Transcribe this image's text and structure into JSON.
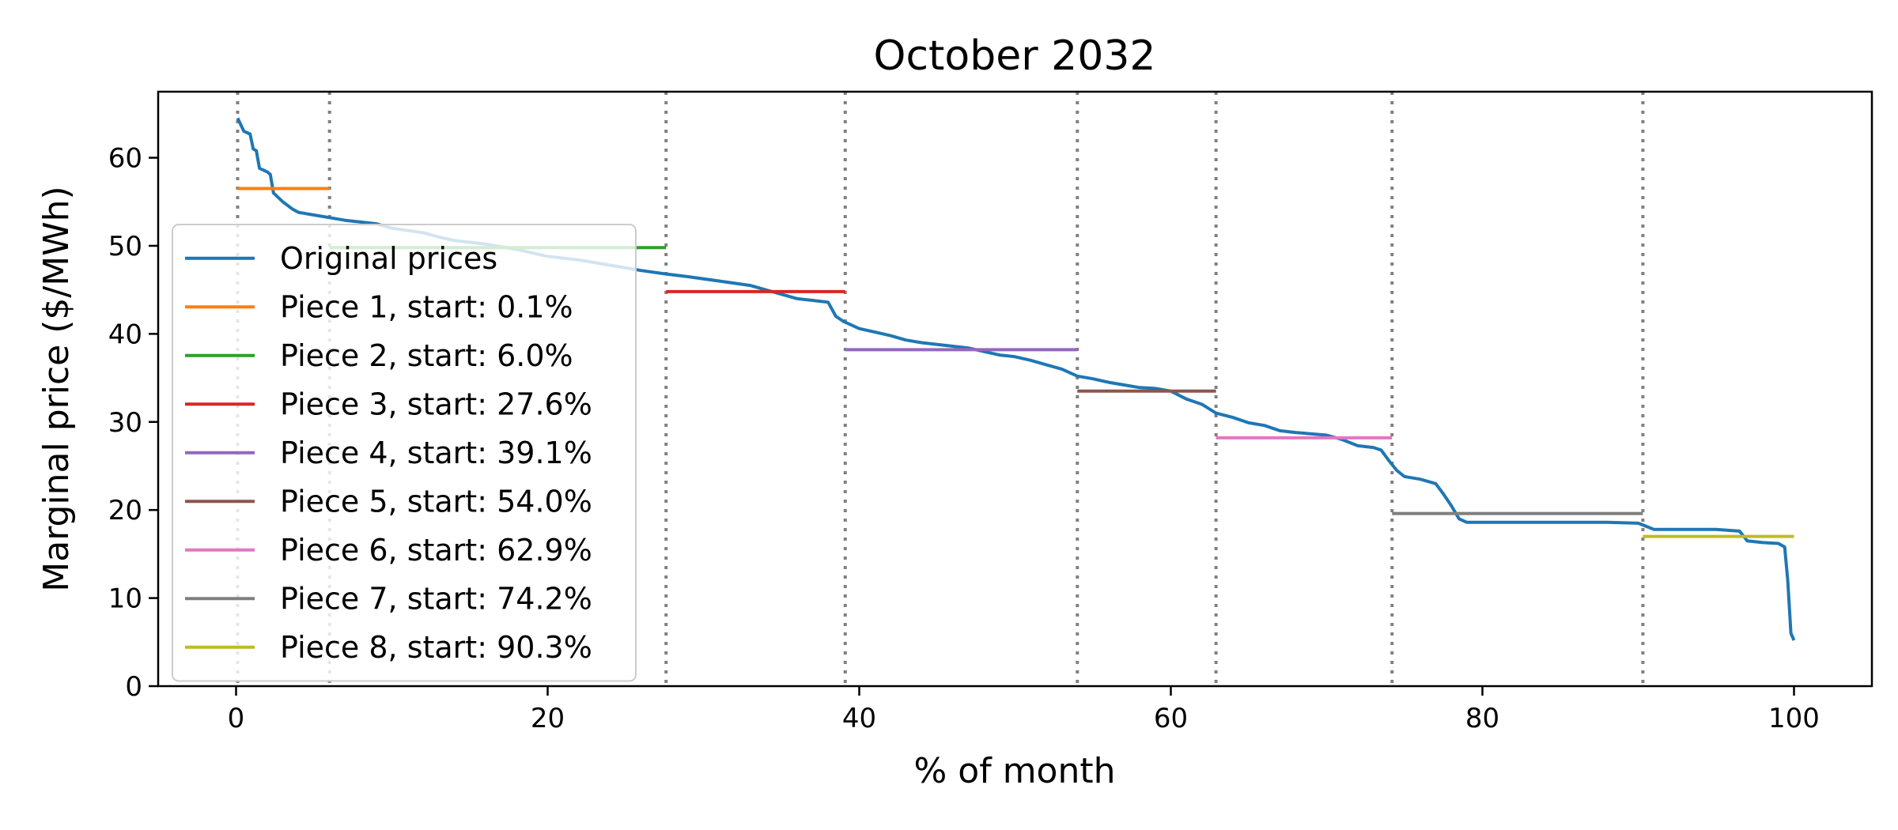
{
  "chart_data": {
    "type": "line",
    "title": "October 2032",
    "xlabel": "% of month",
    "ylabel": "Marginal price ($/MWh)",
    "xlim": [
      -5,
      105
    ],
    "ylim": [
      0,
      67.5
    ],
    "xticks": [
      0,
      20,
      40,
      60,
      80,
      100
    ],
    "yticks": [
      0,
      10,
      20,
      30,
      40,
      50,
      60
    ],
    "grid": false,
    "legend_position": "center-left",
    "breakpoints": [
      0.1,
      6.0,
      27.6,
      39.1,
      54.0,
      62.9,
      74.2,
      90.3
    ],
    "breakpoint_color": "#808080",
    "series": [
      {
        "name": "Original prices",
        "color": "#1f77b4",
        "points": [
          [
            0.1,
            64.5
          ],
          [
            0.5,
            63.0
          ],
          [
            0.9,
            62.7
          ],
          [
            1.1,
            61.0
          ],
          [
            1.3,
            60.8
          ],
          [
            1.5,
            58.8
          ],
          [
            2.0,
            58.4
          ],
          [
            2.2,
            58.1
          ],
          [
            2.4,
            56.0
          ],
          [
            3.0,
            55.0
          ],
          [
            3.6,
            54.2
          ],
          [
            4.0,
            53.8
          ],
          [
            5.0,
            53.5
          ],
          [
            6.0,
            53.2
          ],
          [
            7.0,
            52.9
          ],
          [
            8.0,
            52.7
          ],
          [
            9.0,
            52.5
          ],
          [
            10.0,
            52.0
          ],
          [
            12.0,
            51.5
          ],
          [
            13.0,
            51.0
          ],
          [
            14.0,
            50.6
          ],
          [
            16.0,
            50.2
          ],
          [
            18.0,
            49.6
          ],
          [
            20.0,
            48.8
          ],
          [
            22.0,
            48.4
          ],
          [
            24.0,
            47.8
          ],
          [
            26.0,
            47.2
          ],
          [
            27.6,
            46.8
          ],
          [
            29.0,
            46.5
          ],
          [
            31.0,
            46.0
          ],
          [
            33.0,
            45.5
          ],
          [
            34.0,
            45.0
          ],
          [
            35.0,
            44.5
          ],
          [
            36.0,
            44.0
          ],
          [
            37.0,
            43.8
          ],
          [
            38.0,
            43.6
          ],
          [
            38.5,
            42.0
          ],
          [
            39.0,
            41.4
          ],
          [
            39.5,
            41.0
          ],
          [
            40.0,
            40.6
          ],
          [
            41.0,
            40.2
          ],
          [
            42.0,
            39.8
          ],
          [
            43.0,
            39.3
          ],
          [
            44.0,
            39.0
          ],
          [
            45.0,
            38.8
          ],
          [
            46.0,
            38.6
          ],
          [
            47.0,
            38.4
          ],
          [
            48.0,
            38.0
          ],
          [
            49.0,
            37.6
          ],
          [
            50.0,
            37.4
          ],
          [
            51.0,
            37.0
          ],
          [
            52.0,
            36.5
          ],
          [
            53.0,
            36.0
          ],
          [
            54.0,
            35.2
          ],
          [
            55.0,
            34.9
          ],
          [
            56.0,
            34.5
          ],
          [
            57.0,
            34.2
          ],
          [
            58.0,
            33.9
          ],
          [
            59.0,
            33.8
          ],
          [
            60.0,
            33.5
          ],
          [
            61.0,
            32.6
          ],
          [
            62.0,
            32.0
          ],
          [
            62.9,
            31.0
          ],
          [
            64.0,
            30.5
          ],
          [
            65.0,
            29.9
          ],
          [
            66.0,
            29.6
          ],
          [
            67.0,
            29.0
          ],
          [
            68.0,
            28.8
          ],
          [
            70.0,
            28.5
          ],
          [
            71.0,
            28.0
          ],
          [
            72.0,
            27.3
          ],
          [
            73.0,
            27.1
          ],
          [
            73.5,
            26.8
          ],
          [
            74.0,
            25.6
          ],
          [
            74.5,
            24.5
          ],
          [
            75.0,
            23.8
          ],
          [
            76.0,
            23.5
          ],
          [
            77.0,
            23.0
          ],
          [
            77.5,
            21.8
          ],
          [
            78.0,
            20.5
          ],
          [
            78.5,
            19.0
          ],
          [
            79.0,
            18.6
          ],
          [
            82.0,
            18.6
          ],
          [
            85.0,
            18.6
          ],
          [
            88.0,
            18.6
          ],
          [
            90.0,
            18.5
          ],
          [
            90.3,
            18.3
          ],
          [
            91.0,
            17.8
          ],
          [
            93.0,
            17.8
          ],
          [
            95.0,
            17.8
          ],
          [
            96.5,
            17.6
          ],
          [
            97.0,
            16.5
          ],
          [
            98.0,
            16.3
          ],
          [
            99.0,
            16.2
          ],
          [
            99.4,
            15.8
          ],
          [
            99.6,
            12.0
          ],
          [
            99.8,
            6.0
          ],
          [
            100.0,
            5.2
          ]
        ]
      },
      {
        "name": "Piece 1, start: 0.1%",
        "color": "#ff7f0e",
        "segment": [
          0.1,
          6.0,
          56.5
        ]
      },
      {
        "name": "Piece 2, start: 6.0%",
        "color": "#2ca02c",
        "segment": [
          6.0,
          27.6,
          49.8
        ]
      },
      {
        "name": "Piece 3, start: 27.6%",
        "color": "#d62728",
        "segment": [
          27.6,
          39.1,
          44.8
        ]
      },
      {
        "name": "Piece 4, start: 39.1%",
        "color": "#9467bd",
        "segment": [
          39.1,
          54.0,
          38.2
        ]
      },
      {
        "name": "Piece 5, start: 54.0%",
        "color": "#8c564b",
        "segment": [
          54.0,
          62.9,
          33.5
        ]
      },
      {
        "name": "Piece 6, start: 62.9%",
        "color": "#e377c2",
        "segment": [
          62.9,
          74.2,
          28.2
        ]
      },
      {
        "name": "Piece 7, start: 74.2%",
        "color": "#7f7f7f",
        "segment": [
          74.2,
          90.3,
          19.6
        ]
      },
      {
        "name": "Piece 8, start: 90.3%",
        "color": "#bcbd22",
        "segment": [
          90.3,
          100.0,
          17.0
        ]
      }
    ]
  }
}
